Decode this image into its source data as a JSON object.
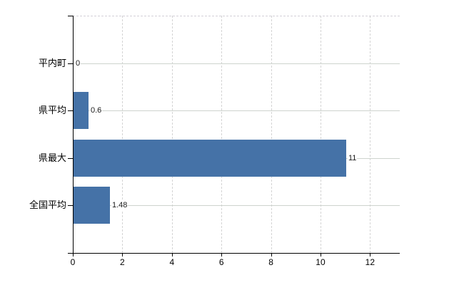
{
  "chart": {
    "background": "#ffffff",
    "bar_color": "#4572a7",
    "axis_color": "#000000",
    "grid_h_color": "#ced3ce",
    "grid_v_color": "#d4d4d4",
    "top_border_color": "#d3d0d8",
    "category_label_color": "#000000",
    "value_label_color": "#1a1a1a"
  },
  "chart_data": {
    "type": "bar",
    "orientation": "horizontal",
    "title": "",
    "xlabel": "",
    "ylabel": "",
    "categories": [
      "平内町",
      "県平均",
      "県最大",
      "全国平均"
    ],
    "values": [
      0,
      0.6,
      11,
      1.48
    ],
    "value_labels": [
      "0",
      "0.6",
      "11",
      "1.48"
    ],
    "xticks": [
      0,
      2,
      4,
      6,
      8,
      10,
      12
    ],
    "xtick_labels": [
      "0",
      "2",
      "4",
      "6",
      "8",
      "10",
      "12"
    ],
    "xlim": [
      0,
      13.2
    ],
    "grid": true,
    "legend": false
  }
}
